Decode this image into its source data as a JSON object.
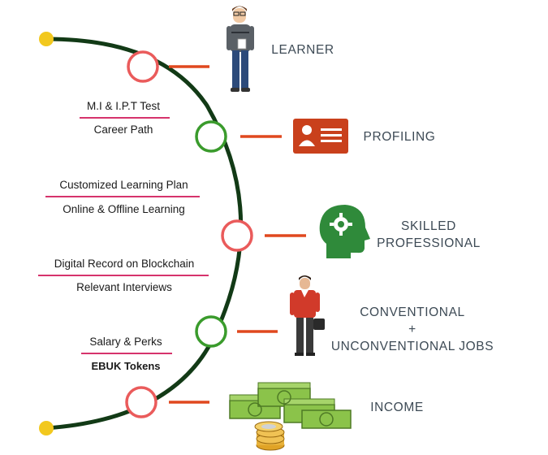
{
  "colors": {
    "timeline": "#123a16",
    "endpoint": "#f2c81e",
    "red_node": "#ea5b5b",
    "green_node": "#3a9b2c",
    "connector": "#e0481f",
    "rule": "#d6336c",
    "label": "#3d4a55"
  },
  "stages": [
    {
      "label": "LEARNER",
      "node": "red",
      "icon": "learner-figure-icon"
    },
    {
      "label": "PROFILING",
      "node": "green",
      "icon": "id-card-icon"
    },
    {
      "label_line1": "SKILLED",
      "label_line2": "PROFESSIONAL",
      "node": "red",
      "icon": "head-gear-icon"
    },
    {
      "label_line1": "CONVENTIONAL",
      "plus": "+",
      "label_line2": "UNCONVENTIONAL JOBS",
      "node": "green",
      "icon": "businessman-briefcase-icon"
    },
    {
      "label": "INCOME",
      "node": "red",
      "icon": "money-coins-icon"
    }
  ],
  "left_notes": [
    {
      "top": "M.I & I.P.T Test",
      "bottom": "Career Path"
    },
    {
      "top": "Customized Learning Plan",
      "bottom": "Online & Offline Learning"
    },
    {
      "top": "Digital Record on Blockchain",
      "bottom": "Relevant Interviews"
    },
    {
      "top": "Salary & Perks",
      "bottom": "EBUK Tokens"
    }
  ]
}
